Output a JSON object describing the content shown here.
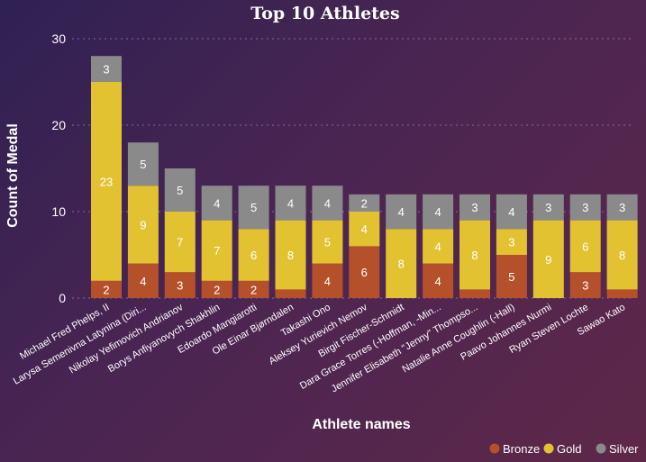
{
  "chart_data": {
    "type": "bar",
    "stacked": true,
    "title": "Top 10 Athletes",
    "xlabel": "Athlete names",
    "ylabel": "Count of Medal",
    "ylim": [
      0,
      30
    ],
    "yticks": [
      "0",
      "10",
      "20",
      "30"
    ],
    "grid": true,
    "legend_position": "bottom-right",
    "categories": [
      "Michael Fred Phelps, II",
      "Larysa Semenivna Latynina (Diri...",
      "Nikolay Yefimovich Andrianov",
      "Borys Anfiyanovych Shakhlin",
      "Edoardo Mangiarotti",
      "Ole Einar Bjørndalen",
      "Takashi Ono",
      "Aleksey Yurievich Nemov",
      "Birgit Fischer-Schmidt",
      "Dara Grace Torres (-Hoffman, -Min...",
      "Jennifer Elisabeth \"Jenny\" Thompso...",
      "Natalie Anne Coughlin (-Hall)",
      "Paavo Johannes Nurmi",
      "Ryan Steven Lochte",
      "Sawao Kato"
    ],
    "series": [
      {
        "name": "Bronze",
        "color": "#b5512a",
        "values": [
          2,
          4,
          3,
          2,
          2,
          1,
          4,
          6,
          0,
          4,
          1,
          5,
          0,
          3,
          1
        ],
        "labels": [
          "2",
          "4",
          "3",
          "2",
          "2",
          "",
          "4",
          "6",
          "",
          "4",
          "",
          "5",
          "",
          "3",
          ""
        ]
      },
      {
        "name": "Gold",
        "color": "#e3c232",
        "values": [
          23,
          9,
          7,
          7,
          6,
          8,
          5,
          4,
          8,
          4,
          8,
          3,
          9,
          6,
          8
        ],
        "labels": [
          "23",
          "9",
          "7",
          "7",
          "6",
          "8",
          "5",
          "4",
          "8",
          "4",
          "8",
          "3",
          "9",
          "6",
          "8"
        ]
      },
      {
        "name": "Silver",
        "color": "#8a8a8a",
        "values": [
          3,
          5,
          5,
          4,
          5,
          4,
          4,
          2,
          4,
          4,
          3,
          4,
          3,
          3,
          3
        ],
        "labels": [
          "3",
          "5",
          "5",
          "4",
          "5",
          "4",
          "4",
          "2",
          "4",
          "4",
          "3",
          "4",
          "3",
          "3",
          "3"
        ]
      }
    ]
  }
}
